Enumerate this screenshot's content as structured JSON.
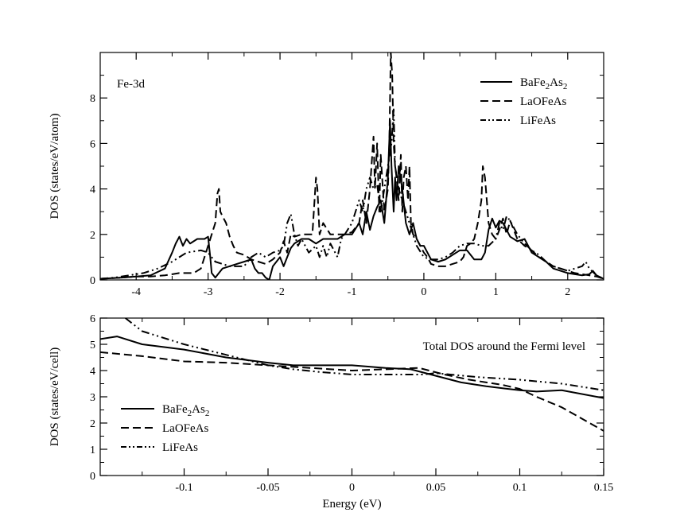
{
  "chart_data": [
    {
      "type": "line",
      "annotation": "Fe-3d",
      "title": "",
      "xlabel": "",
      "ylabel": "DOS (states/eV/atom)",
      "xlim": [
        -4.5,
        2.5
      ],
      "ylim": [
        0,
        10
      ],
      "xticks": [
        -4,
        -3,
        -2,
        -1,
        0,
        1,
        2
      ],
      "yticks": [
        0,
        2,
        4,
        6,
        8
      ],
      "xtick_labels": [
        "-4",
        "-3",
        "-2",
        "-1",
        "0",
        "1",
        "2"
      ],
      "ytick_labels": [
        "0",
        "2",
        "4",
        "6",
        "8"
      ],
      "grid": false,
      "legend_position": "top-right",
      "legend": {
        "entries": [
          {
            "base": "BaFe",
            "sub1": "2",
            "mid": "As",
            "sub2": "2",
            "style": "solid"
          },
          {
            "base": "LaOFeAs",
            "sub1": "",
            "mid": "",
            "sub2": "",
            "style": "dashed"
          },
          {
            "base": "LiFeAs",
            "sub1": "",
            "mid": "",
            "sub2": "",
            "style": "dashdotdot"
          }
        ]
      },
      "series": [
        {
          "style": "solid",
          "x": [
            -4.5,
            -4.2,
            -4.0,
            -3.8,
            -3.6,
            -3.5,
            -3.45,
            -3.4,
            -3.35,
            -3.3,
            -3.25,
            -3.2,
            -3.15,
            -3.1,
            -3.05,
            -3.0,
            -2.97,
            -2.95,
            -2.9,
            -2.85,
            -2.8,
            -2.7,
            -2.6,
            -2.5,
            -2.4,
            -2.35,
            -2.3,
            -2.25,
            -2.2,
            -2.15,
            -2.1,
            -2.0,
            -1.95,
            -1.9,
            -1.85,
            -1.8,
            -1.7,
            -1.6,
            -1.5,
            -1.4,
            -1.3,
            -1.2,
            -1.1,
            -1.0,
            -0.9,
            -0.85,
            -0.8,
            -0.75,
            -0.7,
            -0.65,
            -0.6,
            -0.55,
            -0.5,
            -0.47,
            -0.45,
            -0.42,
            -0.4,
            -0.38,
            -0.35,
            -0.3,
            -0.25,
            -0.2,
            -0.15,
            -0.1,
            -0.05,
            0.0,
            0.05,
            0.1,
            0.2,
            0.3,
            0.4,
            0.5,
            0.6,
            0.7,
            0.8,
            0.85,
            0.9,
            0.95,
            1.0,
            1.05,
            1.1,
            1.15,
            1.2,
            1.3,
            1.4,
            1.5,
            1.6,
            1.7,
            1.8,
            1.9,
            2.0,
            2.1,
            2.2,
            2.3,
            2.35,
            2.4,
            2.5
          ],
          "y": [
            0.05,
            0.1,
            0.15,
            0.2,
            0.5,
            1.2,
            1.6,
            1.9,
            1.5,
            1.8,
            1.6,
            1.7,
            1.8,
            1.8,
            1.8,
            1.9,
            1.0,
            0.3,
            0.1,
            0.3,
            0.5,
            0.6,
            0.7,
            0.8,
            0.9,
            0.5,
            0.3,
            0.3,
            0.1,
            0.0,
            0.6,
            1.0,
            0.6,
            1.0,
            1.4,
            1.6,
            1.8,
            1.8,
            1.6,
            1.8,
            1.8,
            1.8,
            2.0,
            2.0,
            2.5,
            2.0,
            3.0,
            2.2,
            2.8,
            3.2,
            3.5,
            2.5,
            4.5,
            7.0,
            5.0,
            3.0,
            4.5,
            3.5,
            5.0,
            4.0,
            2.5,
            2.0,
            2.5,
            1.8,
            1.5,
            1.5,
            1.2,
            0.9,
            0.8,
            0.9,
            1.1,
            1.3,
            1.3,
            0.9,
            0.9,
            1.2,
            2.2,
            2.7,
            2.3,
            2.6,
            2.5,
            2.2,
            1.9,
            1.7,
            1.8,
            1.2,
            1.0,
            0.8,
            0.5,
            0.4,
            0.3,
            0.25,
            0.2,
            0.25,
            0.4,
            0.2,
            0.05
          ]
        },
        {
          "style": "dashed",
          "x": [
            -4.5,
            -4.2,
            -4.0,
            -3.8,
            -3.6,
            -3.4,
            -3.2,
            -3.1,
            -3.0,
            -2.95,
            -2.9,
            -2.87,
            -2.85,
            -2.83,
            -2.8,
            -2.75,
            -2.7,
            -2.65,
            -2.6,
            -2.5,
            -2.4,
            -2.3,
            -2.2,
            -2.1,
            -2.0,
            -1.95,
            -1.9,
            -1.85,
            -1.8,
            -1.7,
            -1.6,
            -1.55,
            -1.5,
            -1.48,
            -1.45,
            -1.4,
            -1.3,
            -1.2,
            -1.1,
            -1.0,
            -0.9,
            -0.85,
            -0.8,
            -0.75,
            -0.7,
            -0.68,
            -0.65,
            -0.62,
            -0.6,
            -0.55,
            -0.5,
            -0.48,
            -0.46,
            -0.44,
            -0.42,
            -0.4,
            -0.38,
            -0.35,
            -0.32,
            -0.3,
            -0.28,
            -0.25,
            -0.22,
            -0.2,
            -0.18,
            -0.15,
            -0.1,
            -0.05,
            0.0,
            0.05,
            0.1,
            0.2,
            0.3,
            0.4,
            0.5,
            0.55,
            0.6,
            0.65,
            0.7,
            0.75,
            0.8,
            0.82,
            0.85,
            0.9,
            0.95,
            1.0,
            1.05,
            1.1,
            1.15,
            1.2,
            1.25,
            1.3,
            1.4,
            1.5,
            1.6,
            1.7,
            1.8,
            1.9,
            2.0,
            2.1,
            2.2,
            2.3,
            2.4,
            2.5
          ],
          "y": [
            0.05,
            0.1,
            0.15,
            0.15,
            0.2,
            0.3,
            0.3,
            0.5,
            1.5,
            2.0,
            2.5,
            3.8,
            4.0,
            3.0,
            2.8,
            2.5,
            1.9,
            1.5,
            1.2,
            1.1,
            0.9,
            0.8,
            0.7,
            0.9,
            1.2,
            1.7,
            1.2,
            2.0,
            1.9,
            2.0,
            2.0,
            2.0,
            4.5,
            4.0,
            2.0,
            2.5,
            2.0,
            2.0,
            2.0,
            2.1,
            2.5,
            3.5,
            2.5,
            4.0,
            6.3,
            4.0,
            6.0,
            3.0,
            5.5,
            3.0,
            4.0,
            6.0,
            10.0,
            9.0,
            6.0,
            5.0,
            4.5,
            3.5,
            5.5,
            3.0,
            4.5,
            5.0,
            3.5,
            5.0,
            2.5,
            2.0,
            1.8,
            1.5,
            1.2,
            1.0,
            0.7,
            0.6,
            0.6,
            0.7,
            0.8,
            1.0,
            1.5,
            1.6,
            1.8,
            2.5,
            3.5,
            5.0,
            4.5,
            2.5,
            2.0,
            1.8,
            2.2,
            2.7,
            2.0,
            2.6,
            2.2,
            1.8,
            1.5,
            1.3,
            1.0,
            0.8,
            0.6,
            0.5,
            0.4,
            0.3,
            0.25,
            0.2,
            0.15,
            0.05
          ]
        },
        {
          "style": "dashdotdot",
          "x": [
            -4.5,
            -4.3,
            -4.1,
            -3.9,
            -3.7,
            -3.5,
            -3.3,
            -3.1,
            -3.0,
            -2.9,
            -2.8,
            -2.7,
            -2.6,
            -2.5,
            -2.45,
            -2.4,
            -2.3,
            -2.2,
            -2.1,
            -2.0,
            -1.95,
            -1.9,
            -1.85,
            -1.8,
            -1.75,
            -1.7,
            -1.6,
            -1.5,
            -1.45,
            -1.4,
            -1.35,
            -1.3,
            -1.2,
            -1.15,
            -1.1,
            -1.0,
            -0.9,
            -0.85,
            -0.8,
            -0.75,
            -0.7,
            -0.65,
            -0.6,
            -0.55,
            -0.5,
            -0.45,
            -0.42,
            -0.4,
            -0.35,
            -0.3,
            -0.25,
            -0.2,
            -0.15,
            -0.1,
            0.0,
            0.1,
            0.2,
            0.3,
            0.4,
            0.5,
            0.6,
            0.7,
            0.8,
            0.9,
            1.0,
            1.05,
            1.1,
            1.15,
            1.2,
            1.3,
            1.4,
            1.5,
            1.6,
            1.7,
            1.8,
            1.9,
            2.0,
            2.1,
            2.2,
            2.25,
            2.3,
            2.4,
            2.5
          ],
          "y": [
            0.05,
            0.1,
            0.2,
            0.3,
            0.5,
            0.8,
            1.2,
            1.3,
            1.2,
            0.8,
            0.7,
            0.6,
            0.6,
            0.6,
            0.8,
            1.0,
            1.2,
            1.0,
            1.2,
            1.3,
            1.5,
            2.5,
            2.9,
            2.0,
            1.5,
            1.8,
            1.2,
            1.5,
            1.0,
            1.5,
            1.0,
            1.6,
            1.0,
            1.8,
            2.0,
            2.5,
            3.5,
            3.0,
            4.0,
            4.5,
            4.0,
            4.2,
            3.0,
            4.0,
            5.0,
            6.0,
            7.5,
            5.0,
            4.0,
            3.5,
            3.0,
            2.5,
            2.0,
            1.5,
            1.0,
            0.9,
            0.9,
            1.0,
            1.2,
            1.5,
            1.6,
            1.6,
            1.5,
            1.5,
            1.8,
            2.5,
            2.2,
            2.8,
            2.6,
            2.0,
            1.6,
            1.3,
            1.1,
            0.8,
            0.6,
            0.5,
            0.4,
            0.5,
            0.6,
            0.8,
            0.5,
            0.2,
            0.05
          ]
        }
      ]
    },
    {
      "type": "line",
      "annotation": "Total DOS around the Fermi level",
      "title": "",
      "xlabel": "Energy (eV)",
      "ylabel": "DOS (states/eV/cell)",
      "xlim": [
        -0.15,
        0.15
      ],
      "ylim": [
        0,
        6
      ],
      "xticks": [
        -0.1,
        -0.05,
        0,
        0.05,
        0.1,
        0.15
      ],
      "yticks": [
        0,
        1,
        2,
        3,
        4,
        5,
        6
      ],
      "xtick_labels": [
        "-0.1",
        "-0.05",
        "0",
        "0.05",
        "0.1",
        "0.15"
      ],
      "ytick_labels": [
        "0",
        "1",
        "2",
        "3",
        "4",
        "5",
        "6"
      ],
      "grid": false,
      "legend_position": "bottom-left",
      "legend": {
        "entries": [
          {
            "base": "BaFe",
            "sub1": "2",
            "mid": "As",
            "sub2": "2",
            "style": "solid"
          },
          {
            "base": "LaOFeAs",
            "sub1": "",
            "mid": "",
            "sub2": "",
            "style": "dashed"
          },
          {
            "base": "LiFeAs",
            "sub1": "",
            "mid": "",
            "sub2": "",
            "style": "dashdotdot"
          }
        ]
      },
      "series": [
        {
          "style": "solid",
          "x": [
            -0.15,
            -0.14,
            -0.125,
            -0.1,
            -0.075,
            -0.05,
            -0.035,
            -0.02,
            0.0,
            0.02,
            0.035,
            0.05,
            0.065,
            0.08,
            0.1,
            0.11,
            0.125,
            0.15
          ],
          "y": [
            5.2,
            5.3,
            5.0,
            4.8,
            4.5,
            4.3,
            4.2,
            4.2,
            4.2,
            4.1,
            4.05,
            3.8,
            3.55,
            3.4,
            3.25,
            3.2,
            3.25,
            2.95
          ]
        },
        {
          "style": "dashed",
          "x": [
            -0.15,
            -0.125,
            -0.1,
            -0.075,
            -0.05,
            -0.025,
            0.0,
            0.02,
            0.04,
            0.055,
            0.07,
            0.09,
            0.1,
            0.11,
            0.125,
            0.15
          ],
          "y": [
            4.7,
            4.55,
            4.35,
            4.3,
            4.2,
            4.1,
            4.0,
            4.05,
            4.1,
            3.85,
            3.65,
            3.45,
            3.3,
            3.0,
            2.6,
            1.7
          ]
        },
        {
          "style": "dashdotdot",
          "x": [
            -0.135,
            -0.125,
            -0.1,
            -0.075,
            -0.05,
            -0.035,
            -0.02,
            0.0,
            0.02,
            0.042,
            0.05,
            0.075,
            0.1,
            0.125,
            0.15
          ],
          "y": [
            6.0,
            5.5,
            5.0,
            4.6,
            4.2,
            4.05,
            3.95,
            3.85,
            3.85,
            3.85,
            3.9,
            3.75,
            3.65,
            3.5,
            3.25
          ]
        }
      ]
    }
  ]
}
